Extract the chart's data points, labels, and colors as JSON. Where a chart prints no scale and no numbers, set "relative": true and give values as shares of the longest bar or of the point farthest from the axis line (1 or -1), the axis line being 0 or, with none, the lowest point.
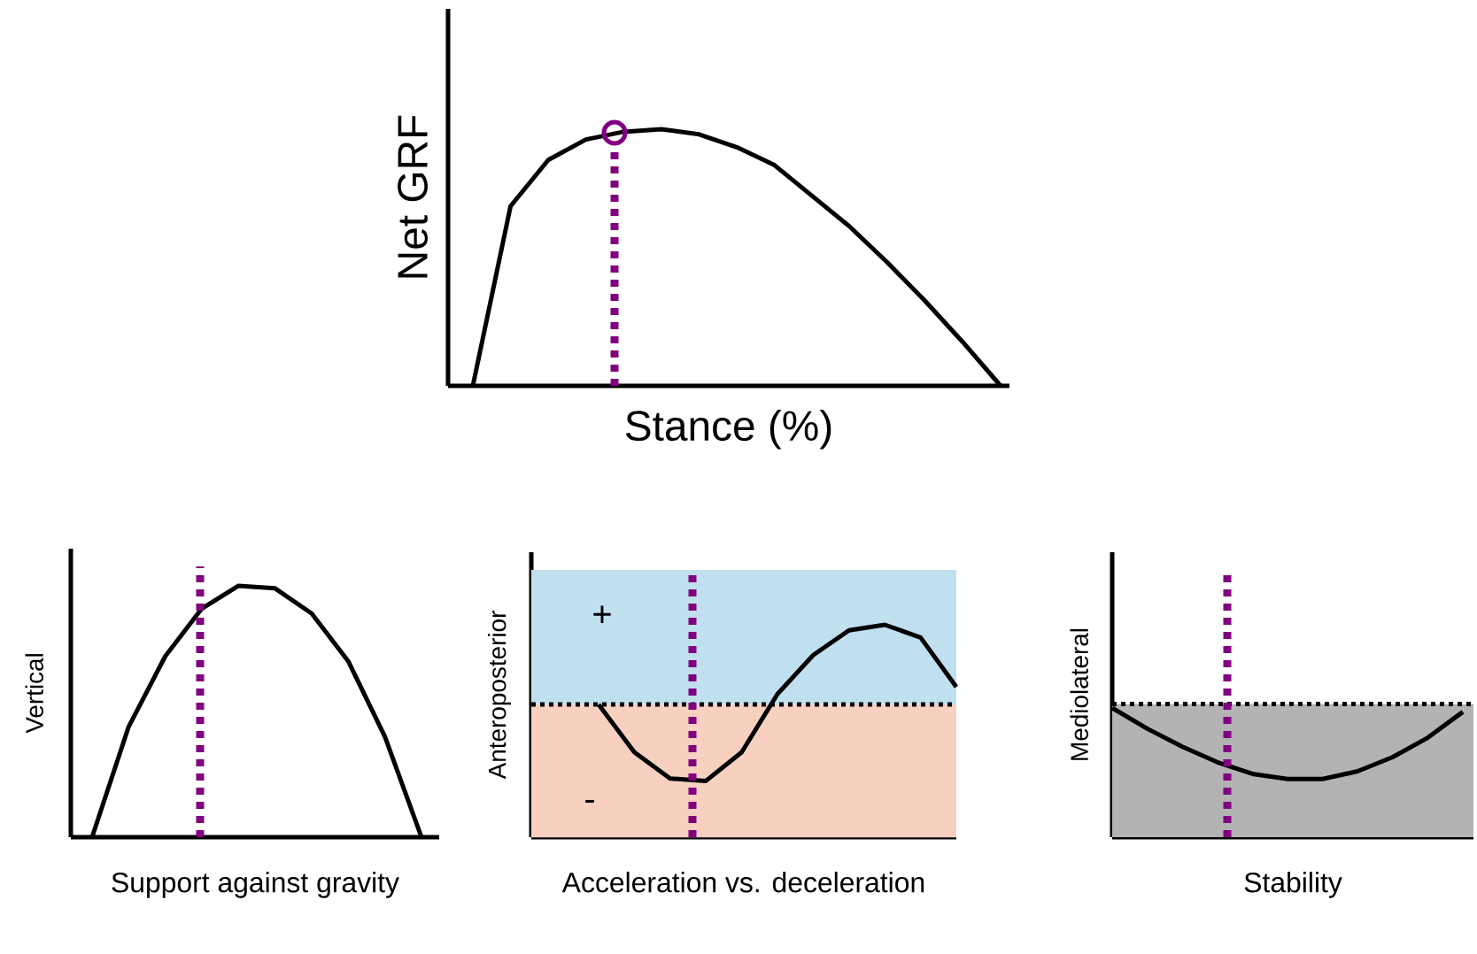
{
  "chart_data": [
    {
      "type": "line",
      "xlabel": "Stance (%)",
      "ylabel": "Net GRF",
      "relative": true,
      "categories": [
        null,
        null,
        null,
        null,
        null,
        null,
        null,
        null,
        null,
        null,
        null,
        null,
        null,
        null,
        null
      ],
      "series": [
        {
          "color": "#000000",
          "values": [
            0,
            0.7,
            0.88,
            0.96,
            0.99,
            1.0,
            0.98,
            0.93,
            0.86,
            0.74,
            0.62,
            0.48,
            0.33,
            0.17,
            0
          ]
        }
      ]
    },
    {
      "type": "line",
      "xlabel": "Support against gravity",
      "ylabel": "Vertical",
      "relative": true,
      "categories": [
        null,
        null,
        null,
        null,
        null,
        null,
        null,
        null,
        null,
        null
      ],
      "series": [
        {
          "color": "#000000",
          "values": [
            0,
            0.44,
            0.72,
            0.91,
            1.0,
            0.99,
            0.89,
            0.7,
            0.4,
            0
          ]
        }
      ]
    },
    {
      "type": "line",
      "xlabel": "Acceleration vs. deceleration",
      "ylabel": "Anteroposterior",
      "relative": true,
      "categories": [
        null,
        null,
        null,
        null,
        null,
        null,
        null,
        null,
        null,
        null,
        null
      ],
      "series": [
        {
          "color": "#000000",
          "values": [
            0,
            -0.6,
            -0.93,
            -0.96,
            -0.6,
            0.13,
            0.62,
            0.93,
            1.0,
            0.84,
            0.22
          ]
        }
      ],
      "ref_lines": [
        {
          "axis": "y",
          "value": 0,
          "color": "#000000",
          "line_style": "dotted"
        }
      ],
      "bands": [
        {
          "axis": "y",
          "from": 0,
          "to": 1.69,
          "color": "#c0e0f0"
        },
        {
          "axis": "y",
          "from": -1.67,
          "to": 0,
          "color": "#f8d0c0"
        }
      ],
      "annotations": [
        "+",
        "-"
      ]
    },
    {
      "type": "line",
      "xlabel": "Stability",
      "ylabel": "Mediolateral",
      "relative": true,
      "categories": [
        null,
        null,
        null,
        null,
        null,
        null,
        null,
        null,
        null,
        null,
        null
      ],
      "series": [
        {
          "color": "#000000",
          "values": [
            1.0,
            0.84,
            0.7,
            0.58,
            0.49,
            0.45,
            0.45,
            0.51,
            0.62,
            0.77,
            0.97
          ]
        }
      ],
      "ref_lines": [
        {
          "axis": "y",
          "value": 1.03,
          "color": "#000000",
          "line_style": "dotted"
        }
      ],
      "bands": [
        {
          "axis": "y",
          "from": 0,
          "to": 1.03,
          "color": "#b3b3b3"
        }
      ]
    }
  ]
}
